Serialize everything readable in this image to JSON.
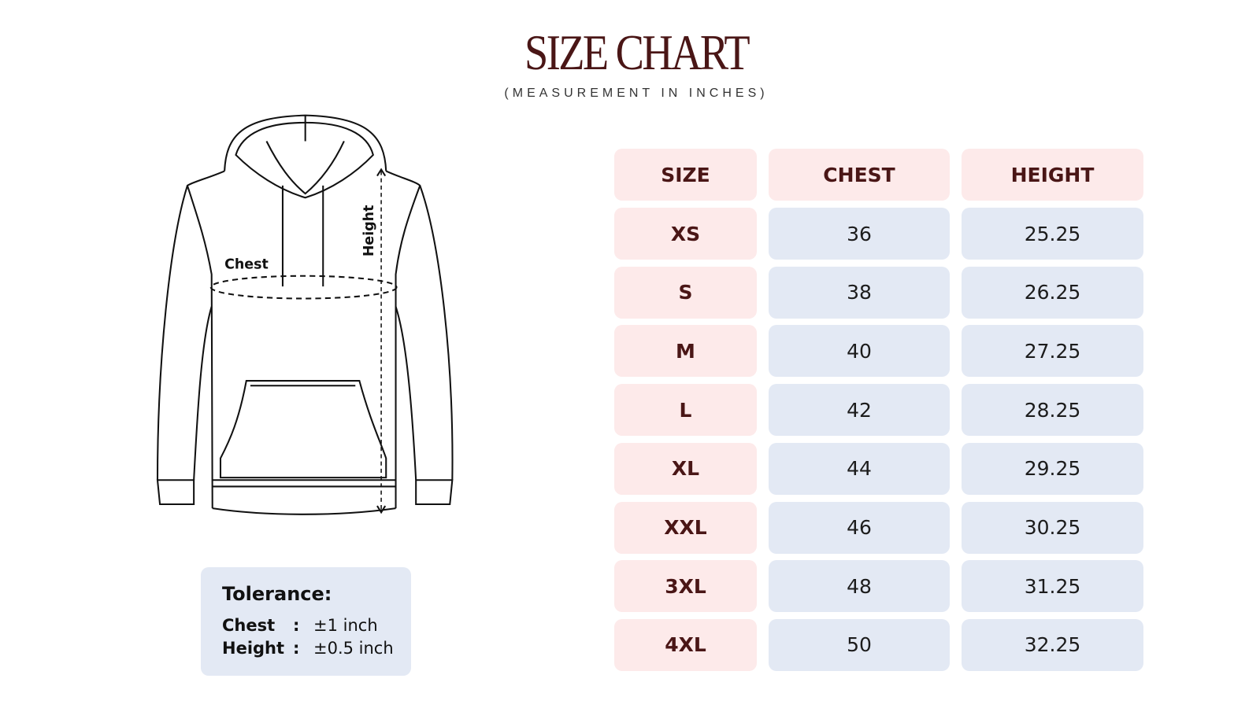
{
  "header": {
    "title": "SIZE CHART",
    "subtitle": "(MEASUREMENT IN INCHES)"
  },
  "illustration": {
    "chest_label": "Chest",
    "height_label": "Height"
  },
  "table": {
    "columns": [
      "SIZE",
      "CHEST",
      "HEIGHT"
    ],
    "rows": [
      [
        "XS",
        "36",
        "25.25"
      ],
      [
        "S",
        "38",
        "26.25"
      ],
      [
        "M",
        "40",
        "27.25"
      ],
      [
        "L",
        "42",
        "28.25"
      ],
      [
        "XL",
        "44",
        "29.25"
      ],
      [
        "XXL",
        "46",
        "30.25"
      ],
      [
        "3XL",
        "48",
        "31.25"
      ],
      [
        "4XL",
        "50",
        "32.25"
      ]
    ]
  },
  "tolerance": {
    "title": "Tolerance:",
    "separator": ":",
    "rows": [
      {
        "label": "Chest",
        "value": "±1 inch"
      },
      {
        "label": "Height",
        "value": "±0.5 inch"
      }
    ]
  }
}
